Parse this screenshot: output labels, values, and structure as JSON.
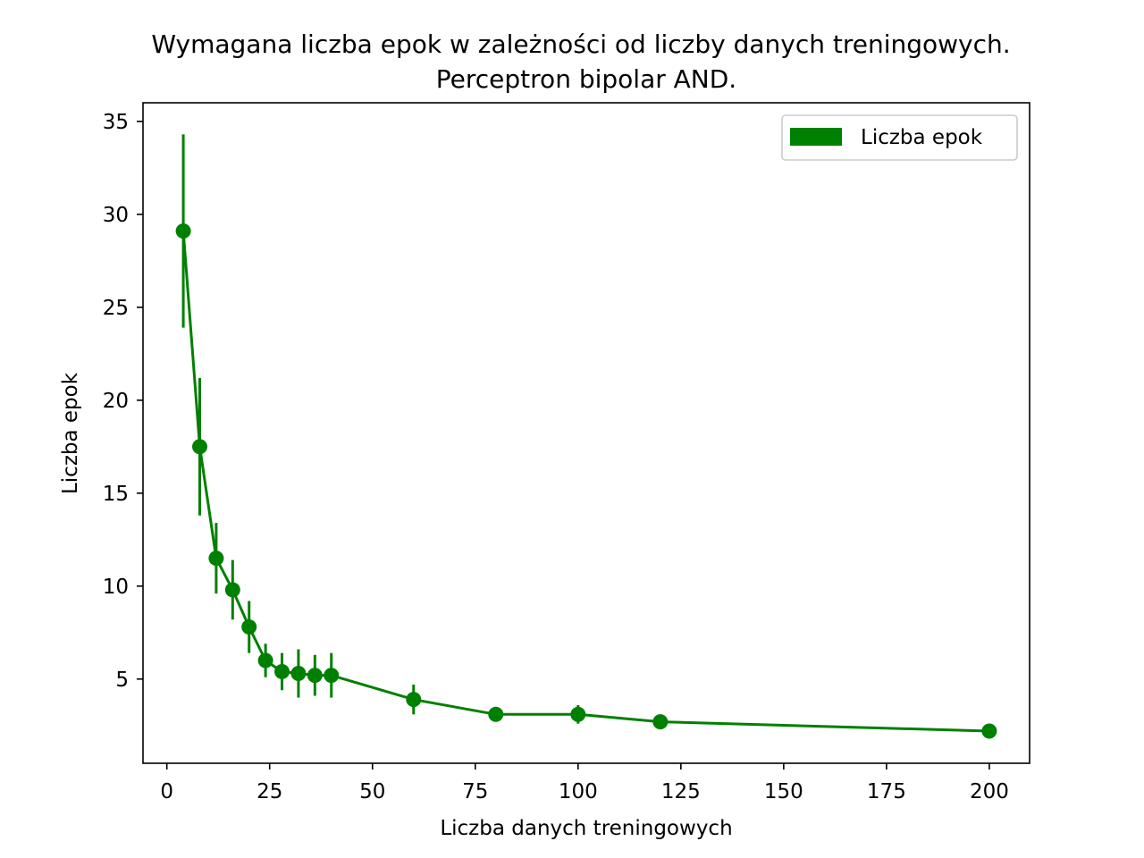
{
  "chart_data": {
    "type": "line",
    "title_lines": [
      "Wymagana liczba epok w zależności od liczby danych treningowych.",
      "Perceptron bipolar AND."
    ],
    "xlabel": "Liczba danych treningowych",
    "ylabel": "Liczba epok",
    "xlim": [
      -5.8,
      209.8
    ],
    "ylim": [
      0.47,
      36.0
    ],
    "xticks": [
      0,
      25,
      50,
      75,
      100,
      125,
      150,
      175,
      200
    ],
    "yticks": [
      5,
      10,
      15,
      20,
      25,
      30,
      35
    ],
    "xtick_labels": [
      "0",
      "25",
      "50",
      "75",
      "100",
      "125",
      "150",
      "175",
      "200"
    ],
    "ytick_labels": [
      "5",
      "10",
      "15",
      "20",
      "25",
      "30",
      "35"
    ],
    "grid": false,
    "legend_position": "upper right",
    "color": "#008000",
    "series": [
      {
        "name": "Liczba epok",
        "x": [
          4,
          8,
          12,
          16,
          20,
          24,
          28,
          32,
          36,
          40,
          60,
          80,
          100,
          120,
          200
        ],
        "y": [
          29.1,
          17.5,
          11.5,
          9.8,
          7.8,
          6.0,
          5.4,
          5.3,
          5.2,
          5.2,
          3.9,
          3.1,
          3.1,
          2.7,
          2.2
        ],
        "err": [
          5.2,
          3.7,
          1.9,
          1.6,
          1.4,
          0.9,
          1.0,
          1.3,
          1.1,
          1.2,
          0.8,
          0.3,
          0.5,
          0.2,
          0.2
        ]
      }
    ]
  }
}
